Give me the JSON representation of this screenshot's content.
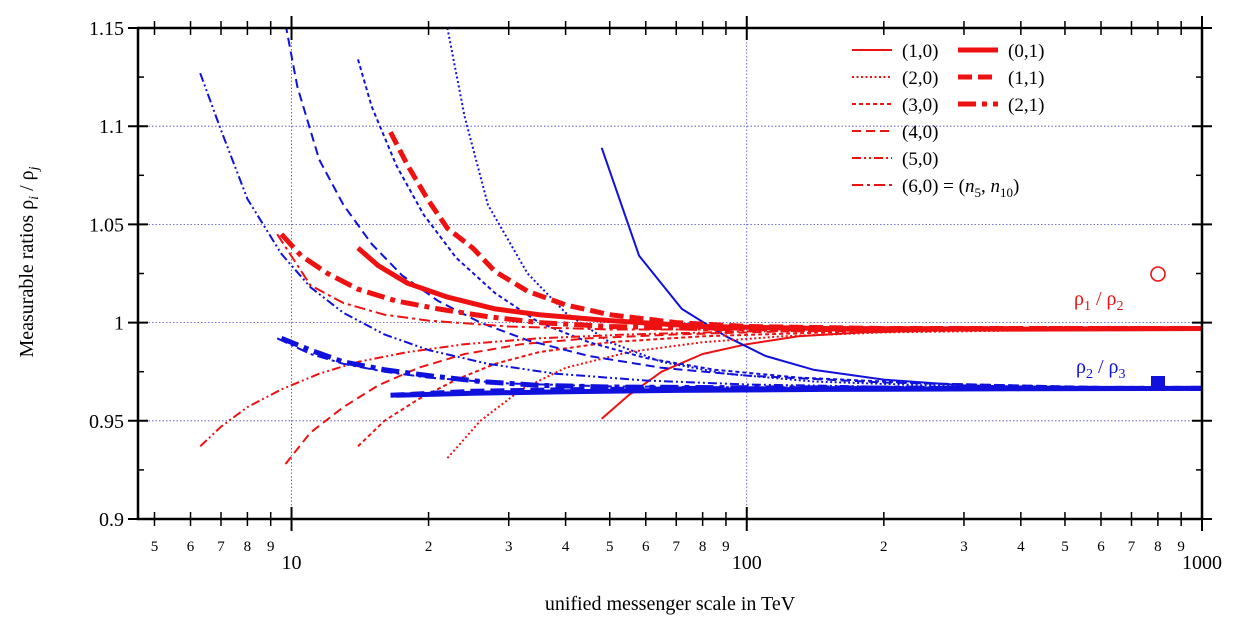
{
  "chart_data": {
    "type": "line",
    "xlabel": "unified messenger scale in TeV",
    "ylabel_parts": [
      "Measurable ratios ρ",
      "i",
      " / ρ",
      "j"
    ],
    "x_scale": "log",
    "xlim": [
      4.6,
      1000
    ],
    "ylim": [
      0.9,
      1.15
    ],
    "grid": true,
    "y_ticks": [
      "0.9",
      "0.95",
      "1",
      "1.05",
      "1.1",
      "1.15"
    ],
    "x_major_ticks": [
      {
        "value": 10,
        "label": "10"
      },
      {
        "value": 100,
        "label": "100"
      },
      {
        "value": 1000,
        "label": "1000"
      }
    ],
    "x_minor_ticks": [
      {
        "value": 5,
        "label": "5"
      },
      {
        "value": 6,
        "label": "6"
      },
      {
        "value": 7,
        "label": "7"
      },
      {
        "value": 8,
        "label": "8"
      },
      {
        "value": 9,
        "label": "9"
      },
      {
        "value": 20,
        "label": "2"
      },
      {
        "value": 30,
        "label": "3"
      },
      {
        "value": 40,
        "label": "4"
      },
      {
        "value": 50,
        "label": "5"
      },
      {
        "value": 60,
        "label": "6"
      },
      {
        "value": 70,
        "label": "7"
      },
      {
        "value": 80,
        "label": "8"
      },
      {
        "value": 90,
        "label": "9"
      },
      {
        "value": 200,
        "label": "2"
      },
      {
        "value": 300,
        "label": "3"
      },
      {
        "value": 400,
        "label": "4"
      },
      {
        "value": 500,
        "label": "5"
      },
      {
        "value": 600,
        "label": "6"
      },
      {
        "value": 700,
        "label": "7"
      },
      {
        "value": 800,
        "label": "8"
      },
      {
        "value": 900,
        "label": "9"
      }
    ],
    "legend": [
      {
        "label": "(1,0)",
        "style": "solid-thin"
      },
      {
        "label": "(2,0)",
        "style": "dotted"
      },
      {
        "label": "(3,0)",
        "style": "short-dash"
      },
      {
        "label": "(4,0)",
        "style": "dash"
      },
      {
        "label": "(5,0)",
        "style": "dash-dot-dot"
      },
      {
        "label": "(6,0) = (n5, n10)",
        "style": "dash-dot"
      },
      {
        "label": "(0,1)",
        "style": "thick-solid"
      },
      {
        "label": "(1,1)",
        "style": "thick-dash"
      },
      {
        "label": "(2,1)",
        "style": "thick-dash-dot"
      }
    ],
    "legend_placement": "top-right",
    "annotations": [
      {
        "text": "ρ1 / ρ2",
        "color": "#ee1111"
      },
      {
        "text": "ρ2 / ρ3",
        "color": "#1111dd"
      }
    ],
    "colors": {
      "rho12": "#ee1111",
      "rho23": "#1111dd"
    },
    "series": [
      {
        "label": "(1,0)",
        "ratio": "rho12",
        "style": "solid-thin",
        "points": [
          [
            48,
            0.951
          ],
          [
            55,
            0.963
          ],
          [
            65,
            0.975
          ],
          [
            80,
            0.984
          ],
          [
            100,
            0.989
          ],
          [
            130,
            0.993
          ],
          [
            180,
            0.995
          ],
          [
            260,
            0.996
          ],
          [
            400,
            0.9965
          ],
          [
            1000,
            0.9968
          ]
        ]
      },
      {
        "label": "(1,0)",
        "ratio": "rho23",
        "style": "solid-thin",
        "points": [
          [
            48,
            1.089
          ],
          [
            58,
            1.034
          ],
          [
            72,
            1.007
          ],
          [
            90,
            0.993
          ],
          [
            110,
            0.983
          ],
          [
            140,
            0.976
          ],
          [
            200,
            0.971
          ],
          [
            300,
            0.968
          ],
          [
            500,
            0.967
          ],
          [
            1000,
            0.9665
          ]
        ]
      },
      {
        "label": "(2,0)",
        "ratio": "rho12",
        "style": "dotted",
        "points": [
          [
            22,
            0.931
          ],
          [
            26,
            0.95
          ],
          [
            32,
            0.966
          ],
          [
            40,
            0.977
          ],
          [
            55,
            0.985
          ],
          [
            80,
            0.99
          ],
          [
            120,
            0.993
          ],
          [
            200,
            0.995
          ],
          [
            400,
            0.996
          ],
          [
            1000,
            0.9965
          ]
        ]
      },
      {
        "label": "(2,0)",
        "ratio": "rho23",
        "style": "dotted",
        "points": [
          [
            22,
            1.15
          ],
          [
            24,
            1.105
          ],
          [
            27,
            1.06
          ],
          [
            33,
            1.025
          ],
          [
            40,
            1.005
          ],
          [
            50,
            0.99
          ],
          [
            65,
            0.98
          ],
          [
            90,
            0.974
          ],
          [
            140,
            0.97
          ],
          [
            250,
            0.968
          ],
          [
            500,
            0.967
          ],
          [
            1000,
            0.9665
          ]
        ]
      },
      {
        "label": "(3,0)",
        "ratio": "rho12",
        "style": "short-dash",
        "points": [
          [
            14,
            0.937
          ],
          [
            16,
            0.95
          ],
          [
            19,
            0.961
          ],
          [
            23,
            0.971
          ],
          [
            28,
            0.979
          ],
          [
            35,
            0.985
          ],
          [
            50,
            0.99
          ],
          [
            80,
            0.993
          ],
          [
            150,
            0.995
          ],
          [
            400,
            0.9963
          ],
          [
            1000,
            0.9967
          ]
        ]
      },
      {
        "label": "(3,0)",
        "ratio": "rho23",
        "style": "short-dash",
        "points": [
          [
            14,
            1.134
          ],
          [
            15,
            1.11
          ],
          [
            17,
            1.08
          ],
          [
            19.5,
            1.055
          ],
          [
            23,
            1.033
          ],
          [
            28,
            1.015
          ],
          [
            35,
            1.0
          ],
          [
            45,
            0.99
          ],
          [
            60,
            0.982
          ],
          [
            85,
            0.976
          ],
          [
            130,
            0.972
          ],
          [
            250,
            0.969
          ],
          [
            600,
            0.967
          ],
          [
            1000,
            0.9665
          ]
        ]
      },
      {
        "label": "(4,0)",
        "ratio": "rho12",
        "style": "dash",
        "points": [
          [
            9.7,
            0.928
          ],
          [
            11,
            0.944
          ],
          [
            13,
            0.957
          ],
          [
            15.5,
            0.968
          ],
          [
            19,
            0.977
          ],
          [
            24,
            0.984
          ],
          [
            32,
            0.989
          ],
          [
            45,
            0.992
          ],
          [
            70,
            0.994
          ],
          [
            120,
            0.9955
          ],
          [
            300,
            0.9962
          ],
          [
            1000,
            0.9967
          ]
        ]
      },
      {
        "label": "(4,0)",
        "ratio": "rho23",
        "style": "dash",
        "points": [
          [
            9.7,
            1.152
          ],
          [
            10.3,
            1.12
          ],
          [
            11.5,
            1.083
          ],
          [
            13,
            1.06
          ],
          [
            15,
            1.04
          ],
          [
            17.5,
            1.024
          ],
          [
            21,
            1.011
          ],
          [
            26,
            1.0
          ],
          [
            33,
            0.991
          ],
          [
            45,
            0.983
          ],
          [
            65,
            0.977
          ],
          [
            100,
            0.973
          ],
          [
            200,
            0.9695
          ],
          [
            500,
            0.9675
          ],
          [
            1000,
            0.9665
          ]
        ]
      },
      {
        "label": "(5,0)",
        "ratio": "rho12",
        "style": "dash-dot-dot",
        "points": [
          [
            6.3,
            0.937
          ],
          [
            7,
            0.947
          ],
          [
            8,
            0.957
          ],
          [
            9.5,
            0.966
          ],
          [
            11.5,
            0.974
          ],
          [
            14,
            0.98
          ],
          [
            18,
            0.985
          ],
          [
            24,
            0.989
          ],
          [
            35,
            0.992
          ],
          [
            55,
            0.994
          ],
          [
            100,
            0.9955
          ],
          [
            300,
            0.9963
          ],
          [
            1000,
            0.9967
          ]
        ]
      },
      {
        "label": "(5,0)",
        "ratio": "rho23",
        "style": "dash-dot-dot",
        "points": [
          [
            6.3,
            1.127
          ],
          [
            7,
            1.098
          ],
          [
            8,
            1.063
          ],
          [
            9.5,
            1.035
          ],
          [
            11,
            1.018
          ],
          [
            13,
            1.005
          ],
          [
            16,
            0.994
          ],
          [
            20,
            0.986
          ],
          [
            27,
            0.979
          ],
          [
            38,
            0.974
          ],
          [
            60,
            0.9705
          ],
          [
            100,
            0.9685
          ],
          [
            250,
            0.967
          ],
          [
            1000,
            0.9665
          ]
        ]
      },
      {
        "label": "(6,0) = (n5, n10)",
        "ratio": "rho12",
        "style": "dash-dot",
        "points": [
          [
            9.3,
            1.045
          ],
          [
            11,
            1.019
          ],
          [
            13,
            1.01
          ],
          [
            16,
            1.004
          ],
          [
            20,
            1.001
          ],
          [
            30,
            0.998
          ],
          [
            50,
            0.9965
          ],
          [
            100,
            0.9965
          ],
          [
            300,
            0.9968
          ],
          [
            1000,
            0.997
          ]
        ]
      },
      {
        "label": "(6,0) = (n5, n10)",
        "ratio": "rho23",
        "style": "dash-dot",
        "points": [
          [
            9.3,
            0.992
          ],
          [
            11,
            0.984
          ],
          [
            13,
            0.979
          ],
          [
            16,
            0.975
          ],
          [
            20,
            0.972
          ],
          [
            30,
            0.969
          ],
          [
            50,
            0.9675
          ],
          [
            100,
            0.967
          ],
          [
            300,
            0.9667
          ],
          [
            1000,
            0.9665
          ]
        ]
      },
      {
        "label": "(0,1)",
        "ratio": "rho12",
        "style": "thick-solid",
        "points": [
          [
            14,
            1.038
          ],
          [
            15.5,
            1.029
          ],
          [
            18,
            1.02
          ],
          [
            22,
            1.013
          ],
          [
            28,
            1.007
          ],
          [
            35,
            1.004
          ],
          [
            50,
            1.001
          ],
          [
            80,
            0.998
          ],
          [
            150,
            0.997
          ],
          [
            400,
            0.9967
          ],
          [
            1000,
            0.997
          ]
        ]
      },
      {
        "label": "(0,1)",
        "ratio": "rho23",
        "style": "thick-solid",
        "points": [
          [
            17,
            0.963
          ],
          [
            25,
            0.964
          ],
          [
            40,
            0.9648
          ],
          [
            70,
            0.9655
          ],
          [
            150,
            0.966
          ],
          [
            400,
            0.9663
          ],
          [
            1000,
            0.9665
          ]
        ]
      },
      {
        "label": "(1,1)",
        "ratio": "rho12",
        "style": "thick-dash",
        "points": [
          [
            16.5,
            1.097
          ],
          [
            18,
            1.08
          ],
          [
            20,
            1.062
          ],
          [
            22,
            1.048
          ],
          [
            25,
            1.038
          ],
          [
            28,
            1.026
          ],
          [
            33,
            1.016
          ],
          [
            40,
            1.009
          ],
          [
            50,
            1.004
          ],
          [
            70,
            1.0
          ],
          [
            100,
            0.998
          ],
          [
            200,
            0.997
          ],
          [
            1000,
            0.997
          ]
        ]
      },
      {
        "label": "(1,1)",
        "ratio": "rho23",
        "style": "thick-dash",
        "points": [
          [
            16.5,
            0.963
          ],
          [
            25,
            0.965
          ],
          [
            45,
            0.966
          ],
          [
            100,
            0.9663
          ],
          [
            300,
            0.9665
          ],
          [
            1000,
            0.9665
          ]
        ]
      },
      {
        "label": "(2,1)",
        "ratio": "rho12",
        "style": "thick-dash-dot",
        "points": [
          [
            9.5,
            1.045
          ],
          [
            10.5,
            1.034
          ],
          [
            12,
            1.025
          ],
          [
            14,
            1.017
          ],
          [
            17,
            1.011
          ],
          [
            21,
            1.007
          ],
          [
            27,
            1.003
          ],
          [
            35,
            1.0
          ],
          [
            50,
            0.998
          ],
          [
            80,
            0.997
          ],
          [
            150,
            0.9968
          ],
          [
            500,
            0.997
          ],
          [
            1000,
            0.997
          ]
        ]
      },
      {
        "label": "(2,1)",
        "ratio": "rho23",
        "style": "thick-dash-dot",
        "points": [
          [
            9.5,
            0.992
          ],
          [
            11,
            0.986
          ],
          [
            13,
            0.98
          ],
          [
            16,
            0.976
          ],
          [
            20,
            0.973
          ],
          [
            26,
            0.97
          ],
          [
            35,
            0.968
          ],
          [
            50,
            0.9672
          ],
          [
            100,
            0.9668
          ],
          [
            300,
            0.9666
          ],
          [
            1000,
            0.9665
          ]
        ]
      }
    ]
  }
}
